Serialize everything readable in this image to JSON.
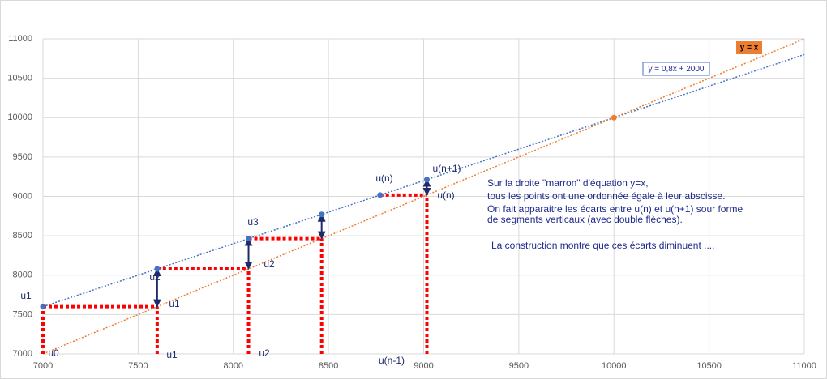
{
  "chart_data": {
    "type": "scatter",
    "xlim": [
      7000,
      11000
    ],
    "ylim": [
      7000,
      11000
    ],
    "xticks": [
      7000,
      7500,
      8000,
      8500,
      9000,
      9500,
      10000,
      10500,
      11000
    ],
    "yticks": [
      7000,
      7500,
      8000,
      8500,
      9000,
      9500,
      10000,
      10500,
      11000
    ],
    "grid": true,
    "series": [
      {
        "name": "y = 0,8x + 2000",
        "color": "#4472c4",
        "x": [
          7000,
          7600,
          8080,
          8464,
          8771,
          9017
        ],
        "values": [
          7600,
          8080,
          8464,
          8771,
          9017,
          9214
        ]
      },
      {
        "name": "y = x",
        "color": "#ed7d31",
        "x": [
          10000
        ],
        "values": [
          10000
        ]
      }
    ],
    "trendlines": [
      {
        "color": "#4472c4",
        "x": [
          7000,
          11000
        ],
        "values": [
          7600,
          10800
        ]
      },
      {
        "color": "#ed7d31",
        "x": [
          7000,
          11000
        ],
        "values": [
          7000,
          11000
        ]
      }
    ],
    "annotations": [
      "u1",
      "u0",
      "u2",
      "u1",
      "u1",
      "u3",
      "u2",
      "u2",
      "u(n)",
      "u(n+1)",
      "u(n)",
      "u(n-1)"
    ],
    "notes": [
      "Sur la droite \"marron\" d'équation y=x,",
      "tous les points ont une ordonnée égale à leur abscisse.",
      "On fait apparaitre les écarts entre u(n) et u(n+1) sour forme",
      "de segments verticaux (avec double flèches).",
      "La construction montre que ces écarts diminuent ...."
    ]
  }
}
